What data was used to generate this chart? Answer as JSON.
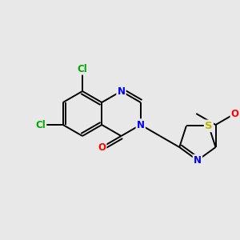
{
  "background_color": "#e8e8e8",
  "bond_color": "#000000",
  "atom_colors": {
    "N": "#0000ff",
    "O": "#ff0000",
    "S": "#b8b800",
    "Cl": "#00aa00",
    "C": "#000000"
  },
  "figsize": [
    3.0,
    3.0
  ],
  "dpi": 100
}
